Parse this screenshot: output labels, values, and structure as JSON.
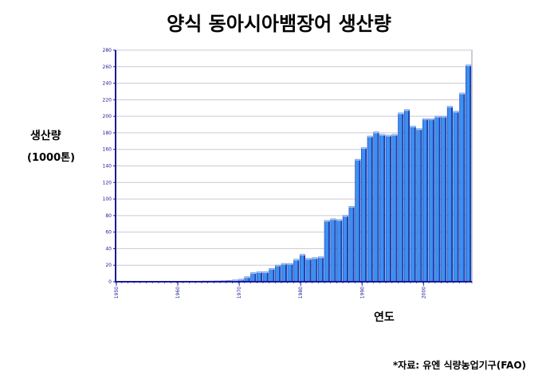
{
  "chart_data": {
    "type": "bar",
    "title": "양식 동아시아뱀장어 생산량",
    "ylabel": "생산량",
    "ylabel_unit": "(1000톤)",
    "xlabel": "연도",
    "source": "*자료: 유엔 식량농업기구(FAO)",
    "ylim": [
      0,
      280
    ],
    "ytick_step": 20,
    "xticks": [
      1950,
      1960,
      1970,
      1980,
      1990,
      2000
    ],
    "grid": true,
    "bar_color": "#3d8ff0",
    "bar_side_color": "#1a3fae",
    "bar_top_color": "#9fc8ff",
    "axis_color": "#1a1a99",
    "x": [
      1950,
      1951,
      1952,
      1953,
      1954,
      1955,
      1956,
      1957,
      1958,
      1959,
      1960,
      1961,
      1962,
      1963,
      1964,
      1965,
      1966,
      1967,
      1968,
      1969,
      1970,
      1971,
      1972,
      1973,
      1974,
      1975,
      1976,
      1977,
      1978,
      1979,
      1980,
      1981,
      1982,
      1983,
      1984,
      1985,
      1986,
      1987,
      1988,
      1989,
      1990,
      1991,
      1992,
      1993,
      1994,
      1995,
      1996,
      1997,
      1998,
      1999,
      2000,
      2001,
      2002,
      2003,
      2004,
      2005,
      2006,
      2007
    ],
    "values": [
      0.5,
      0.5,
      0.5,
      0.5,
      0.5,
      0.5,
      0.5,
      0.6,
      0.6,
      0.6,
      0.6,
      0.7,
      0.7,
      0.7,
      0.8,
      0.8,
      0.9,
      1,
      1.5,
      2,
      3,
      6,
      11,
      12,
      12,
      16,
      20,
      22,
      22,
      27,
      33,
      28,
      29,
      30,
      74,
      76,
      75,
      80,
      91,
      148,
      162,
      176,
      181,
      178,
      177,
      178,
      204,
      208,
      188,
      185,
      197,
      197,
      200,
      200,
      212,
      206,
      228,
      262
    ]
  }
}
